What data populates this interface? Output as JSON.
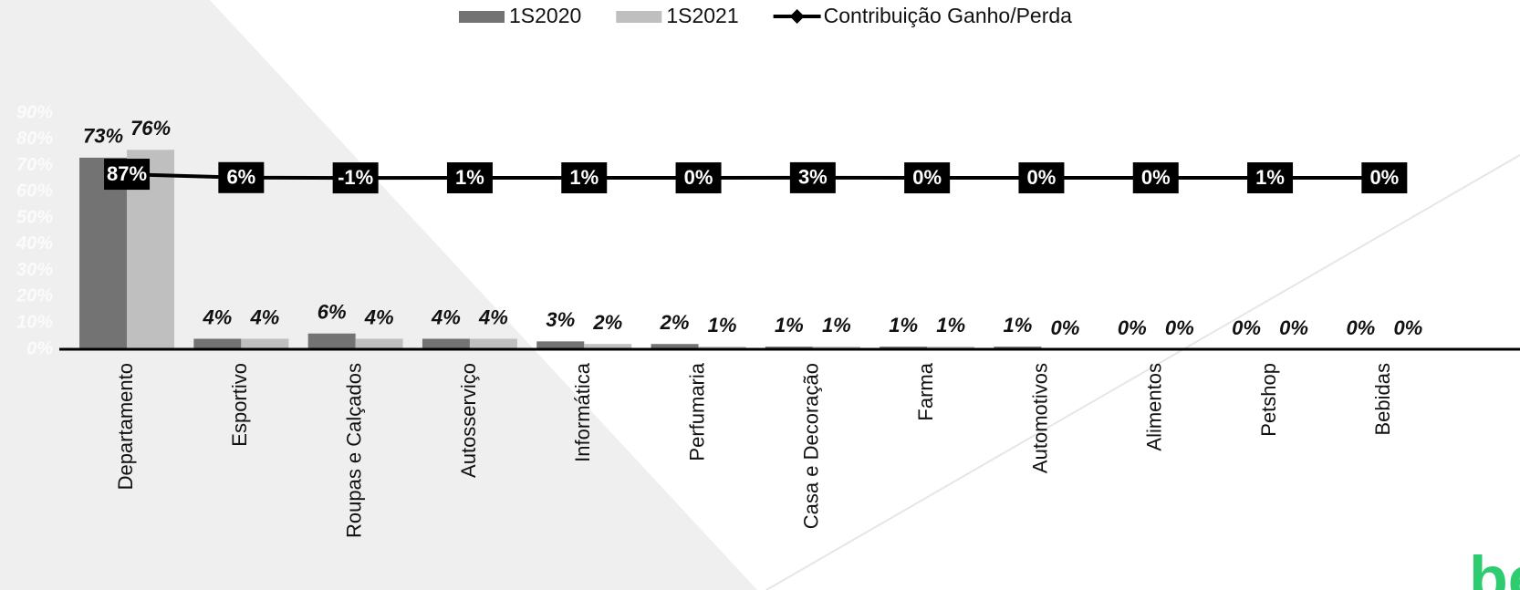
{
  "chart_data": {
    "type": "bar",
    "categories": [
      "Departamento",
      "Esportivo",
      "Roupas e Calçados",
      "Autosserviço",
      "Informática",
      "Perfumaria",
      "Casa e Decoração",
      "Farma",
      "Automotivos",
      "Alimentos",
      "Petshop",
      "Bebidas"
    ],
    "series": [
      {
        "name": "1S2020",
        "color": "#737373",
        "values": [
          73,
          4,
          6,
          4,
          3,
          2,
          1,
          1,
          1,
          0,
          0,
          0
        ],
        "value_labels": [
          "73%",
          "4%",
          "6%",
          "4%",
          "3%",
          "2%",
          "1%",
          "1%",
          "1%",
          "0%",
          "0%",
          "0%"
        ]
      },
      {
        "name": "1S2021",
        "color": "#bfbfbf",
        "values": [
          76,
          4,
          4,
          4,
          2,
          1,
          1,
          1,
          0,
          0,
          0,
          0
        ],
        "value_labels": [
          "76%",
          "4%",
          "4%",
          "4%",
          "2%",
          "1%",
          "1%",
          "1%",
          "0%",
          "0%",
          "0%",
          "0%"
        ]
      },
      {
        "name": "Contribuição Ganho/Perda",
        "type": "line",
        "axis": "y2",
        "color": "#000000",
        "values": [
          87,
          6,
          -1,
          1,
          1,
          0,
          3,
          0,
          0,
          0,
          1,
          0
        ],
        "value_labels": [
          "87%",
          "6%",
          "-1%",
          "1%",
          "1%",
          "0%",
          "3%",
          "0%",
          "0%",
          "0%",
          "1%",
          "0%"
        ]
      }
    ],
    "ylim": [
      0,
      90
    ],
    "yticks": [
      {
        "value": 0,
        "label": "0%"
      },
      {
        "value": 10,
        "label": "10%"
      },
      {
        "value": 20,
        "label": "20%"
      },
      {
        "value": 30,
        "label": "30%"
      },
      {
        "value": 40,
        "label": "40%"
      },
      {
        "value": 50,
        "label": "50%"
      },
      {
        "value": 60,
        "label": "60%"
      },
      {
        "value": 70,
        "label": "70%"
      },
      {
        "value": 80,
        "label": "80%"
      },
      {
        "value": 90,
        "label": "90%"
      }
    ],
    "y2lim": [
      -4100,
      1550
    ],
    "legend": "top"
  }
}
